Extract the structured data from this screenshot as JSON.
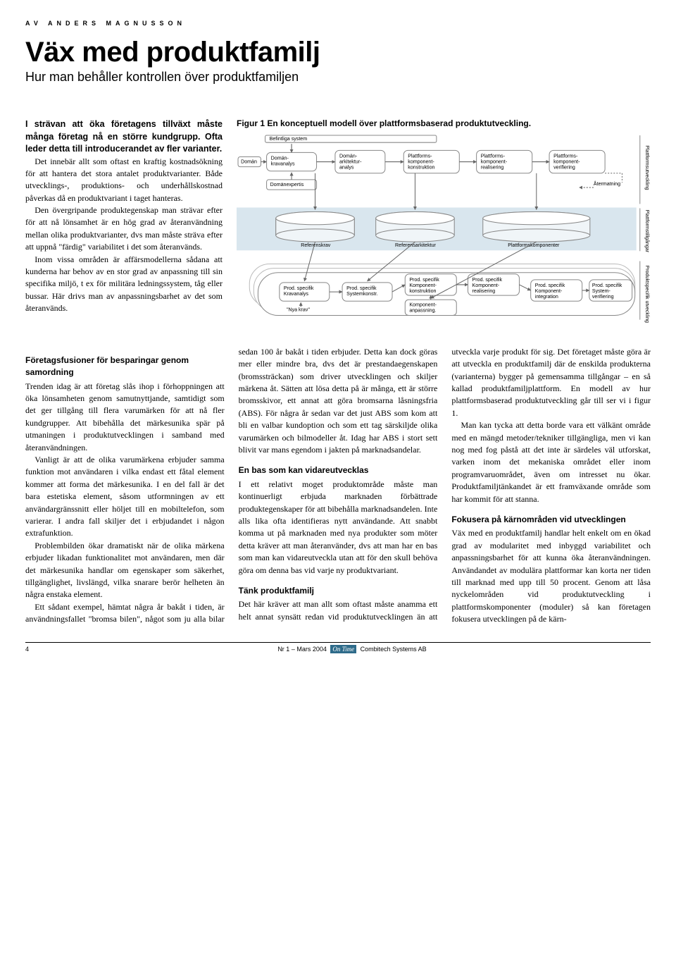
{
  "overline": "AV ANDERS MAGNUSSON",
  "title": "Väx med produktfamilj",
  "subtitle": "Hur man behåller kontrollen över produktfamiljen",
  "lead": "I strävan att öka företagens tillväxt måste många företag nå en större kundgrupp. Ofta leder detta till introducerandet av fler varianter.",
  "top_paragraphs": [
    "Det innebär allt som oftast en kraftig kostnadsökning för att hantera det stora antalet produktvarianter. Både utvecklings-, produktions- och underhållskostnad påverkas då en produktvariant i taget hanteras.",
    "Den övergripande produktegenskap man strävar efter för att nå lönsamhet är en hög grad av återanvändning mellan olika produktvarianter, dvs man måste sträva efter att uppnå \"färdig\" variabilitet i det som återanvänds.",
    "Inom vissa områden är affärsmodellerna sådana att kunderna har behov av en stor grad av anpassning till sin specifika miljö, t ex för militära ledningssystem, tåg eller bussar. Här drivs man av anpassningsbarhet av det som återanvänds."
  ],
  "figure": {
    "caption": "Figur 1 En konceptuell modell över plattformsbaserad produktutveckling.",
    "topbar": "Befintliga system",
    "domain_label": "Domän",
    "nodes_top": [
      "Domän-\nkravanalys",
      "Domän-\narkitektur-\nanalys",
      "Plattforms-\nkomponent-\nkonstruktion",
      "Plattforms-\nkomponent-\nrealisering",
      "Plattforms-\nkomponent-\nverifiering"
    ],
    "domexp": "Domänexpertis",
    "atermatning": "Återmatning",
    "midlabels": [
      "Referenskrav",
      "Referensarkitektur",
      "Plattformskomponenter"
    ],
    "nodes_bot": [
      "Prod. specifik\nKravanalys",
      "Prod. specifik\nSystemkonstr.",
      "Prod. specifik\nKomponent-\nkonstruktion",
      "Prod. specifik\nKomponent-\nrealisering",
      "Prod. specifik\nKomponent-\nintegration",
      "Prod. specifik\nSystem-\nverifiering"
    ],
    "kompanp": "Komponent-\nanpassning.",
    "nyakrav": "\"Nya krav\"",
    "vlabels": [
      "Plattformsutveckling",
      "Plattformstillgångar",
      "Produktspecifik utveckling"
    ],
    "colors": {
      "band": "#d9e6ee",
      "cyl": "#f0f5f8",
      "node_stroke": "#888888",
      "arrow": "#666666"
    }
  },
  "section1_head": "Företagsfusioner för besparingar genom samordning",
  "body": [
    "Trenden idag är att företag slås ihop i förhoppningen att öka lönsamheten genom samutnyttjande, samtidigt som det ger tillgång till flera varumärken för att nå fler kundgrupper. Att bibehålla det märkesunika spär på utmaningen i produktutvecklingen i samband med återanvändningen.",
    "Vanligt är att de olika varumärkena erbjuder samma funktion mot användaren i vilka endast ett fåtal element kommer att forma det märkesunika. I en del fall är det bara estetiska element, såsom utformningen av ett användargränssnitt eller höljet till en mobiltelefon, som varierar. I andra fall skiljer det i erbjudandet i någon extrafunktion.",
    "Problembilden ökar dramatiskt när de olika märkena erbjuder likadan funktionalitet mot användaren, men där det märkesunika handlar om egenskaper som säkerhet, tillgänglighet, livslängd, vilka snarare berör helheten än några enstaka element.",
    "Ett sådant exempel, hämtat några år bakåt i tiden, är användningsfallet \"bromsa bilen\", något som ju alla bilar sedan 100 år bakåt i tiden erbjuder. Detta kan dock göras mer eller mindre bra, dvs det är prestandaegenskapen (bromssträckan) som driver utvecklingen och skiljer märkena åt. Sätten att lösa detta på är många, ett är större bromsskivor, ett annat att göra bromsarna låsningsfria (ABS). För några år sedan var det just ABS som kom att bli en valbar kundoption och som ett tag särskiljde olika varumärken och bilmodeller åt. Idag har ABS i stort sett blivit var mans egendom i jakten på marknadsandelar."
  ],
  "section2_head": "En bas som kan vidareutvecklas",
  "body2": [
    "I ett relativt moget produktområde måste man kontinuerligt erbjuda marknaden förbättrade produktegenskaper för att bibehålla marknadsandelen. Inte alls lika ofta identifieras nytt användande. Att snabbt komma ut på marknaden med nya produkter som möter detta kräver att man återanvänder, dvs att man har en bas som man kan vidareutveckla utan att för den skull behöva göra om denna bas vid varje ny produktvariant."
  ],
  "section3_head": "Tänk produktfamilj",
  "body3": [
    "Det här kräver att man allt som oftast måste anamma ett helt annat synsätt redan vid produktutvecklingen än att utveckla varje produkt för sig. Det företaget måste göra är att utveckla en produktfamilj där de enskilda produkterna (varianterna) bygger på gemensamma tillgångar – en så kallad produktfamiljplattform. En modell av hur plattformsbaserad produktutveckling går till ser vi i figur 1.",
    "Man kan tycka att detta borde vara ett välkänt område med en mängd metoder/tekniker tillgängliga, men vi kan nog med fog påstå att det inte är särdeles väl utforskat, varken inom det mekaniska området eller inom programvaruområdet, även om intresset nu ökar. Produktfamiljtänkandet är ett framväxande område som har kommit för att stanna."
  ],
  "section4_head": "Fokusera på kärnområden vid utvecklingen",
  "body4": [
    "Väx med en produktfamilj handlar helt enkelt om en ökad grad av modularitet med inbyggd variabilitet och anpassningsbarhet för att kunna öka återanvändningen. Användandet av modulära plattformar kan korta ner tiden till marknad med upp till 50 procent. Genom att låsa nyckelområden vid produktutveckling i plattformskomponenter (moduler) så kan företagen fokusera utvecklingen på de kärn-"
  ],
  "footer": {
    "page": "4",
    "issue": "Nr 1 – Mars 2004",
    "ontime": "On Time",
    "publisher": "Combitech Systems AB"
  }
}
